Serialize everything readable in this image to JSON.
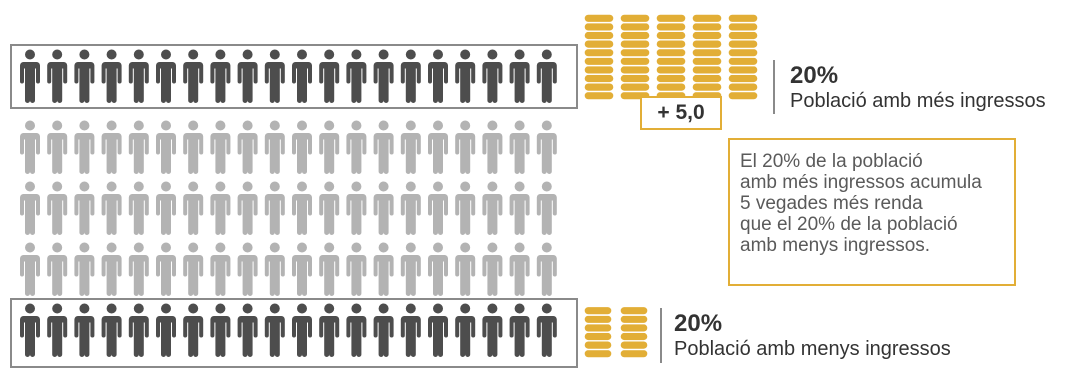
{
  "colors": {
    "top_people": "#4d4d4d",
    "middle_people": "#b3b3b3",
    "bottom_people": "#4d4d4d",
    "coins": "#E2AE36",
    "frame": "#8a8a8a"
  },
  "rows": [
    {
      "group": "top",
      "people": 20,
      "highlight": true
    },
    {
      "group": "middle",
      "people": 20,
      "highlight": false
    },
    {
      "group": "middle",
      "people": 20,
      "highlight": false
    },
    {
      "group": "middle",
      "people": 20,
      "highlight": false
    },
    {
      "group": "bottom",
      "people": 20,
      "highlight": true
    }
  ],
  "top_group": {
    "percent": "20%",
    "description": "Població amb més ingressos",
    "coin_stacks": 5,
    "ratio_label": "+ 5,0"
  },
  "bottom_group": {
    "percent": "20%",
    "description": "Població amb menys ingressos",
    "coin_stacks": 2
  },
  "note": {
    "lines": [
      "El 20% de la població",
      "amb més ingressos acumula",
      "5 vegades més renda",
      "que el 20% de la població",
      "amb menys ingressos."
    ]
  }
}
